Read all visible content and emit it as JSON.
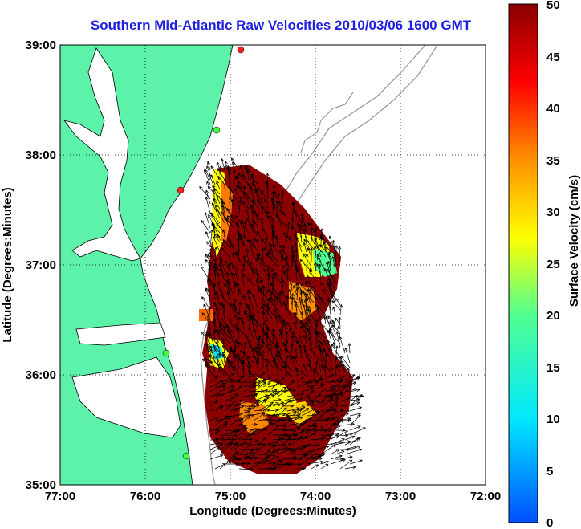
{
  "title": "Southern Mid-Atlantic Raw Velocities 2010/03/06 1600 GMT",
  "xlabel": "Longitude (Degrees:Minutes)",
  "ylabel": "Latitude (Degrees:Minutes)",
  "x_ticks": [
    "77:00",
    "76:00",
    "75:00",
    "74:00",
    "73:00",
    "72:00"
  ],
  "y_ticks": [
    "39:00",
    "38:00",
    "37:00",
    "36:00",
    "35:00"
  ],
  "colorbar": {
    "label": "Surface Velocity (cm/s)",
    "ticks": [
      "50",
      "45",
      "40",
      "35",
      "30",
      "25",
      "20",
      "15",
      "10",
      "5",
      "0"
    ],
    "range": [
      0,
      50
    ]
  },
  "map_extent": {
    "lon_range": [
      -77,
      -72
    ],
    "lat_range": [
      35,
      39
    ]
  },
  "colors": {
    "land": "#5cf2a9",
    "title": "#1f1fe0",
    "field_high": "#8b0000",
    "field_mid": "#ffff00",
    "field_low": "#00c8ff"
  }
}
